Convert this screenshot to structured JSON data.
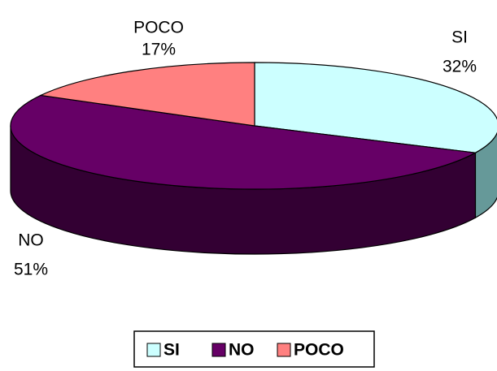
{
  "chart_data": {
    "type": "pie3d",
    "categories": [
      "SI",
      "NO",
      "POCO"
    ],
    "values": [
      32,
      51,
      17
    ],
    "value_labels": [
      "32%",
      "51%",
      "17%"
    ],
    "colors": [
      "#ccffff",
      "#660066",
      "#ff8080"
    ],
    "side_colors": [
      "#669999",
      "#330033",
      "#804040"
    ],
    "legend": "bottom"
  }
}
